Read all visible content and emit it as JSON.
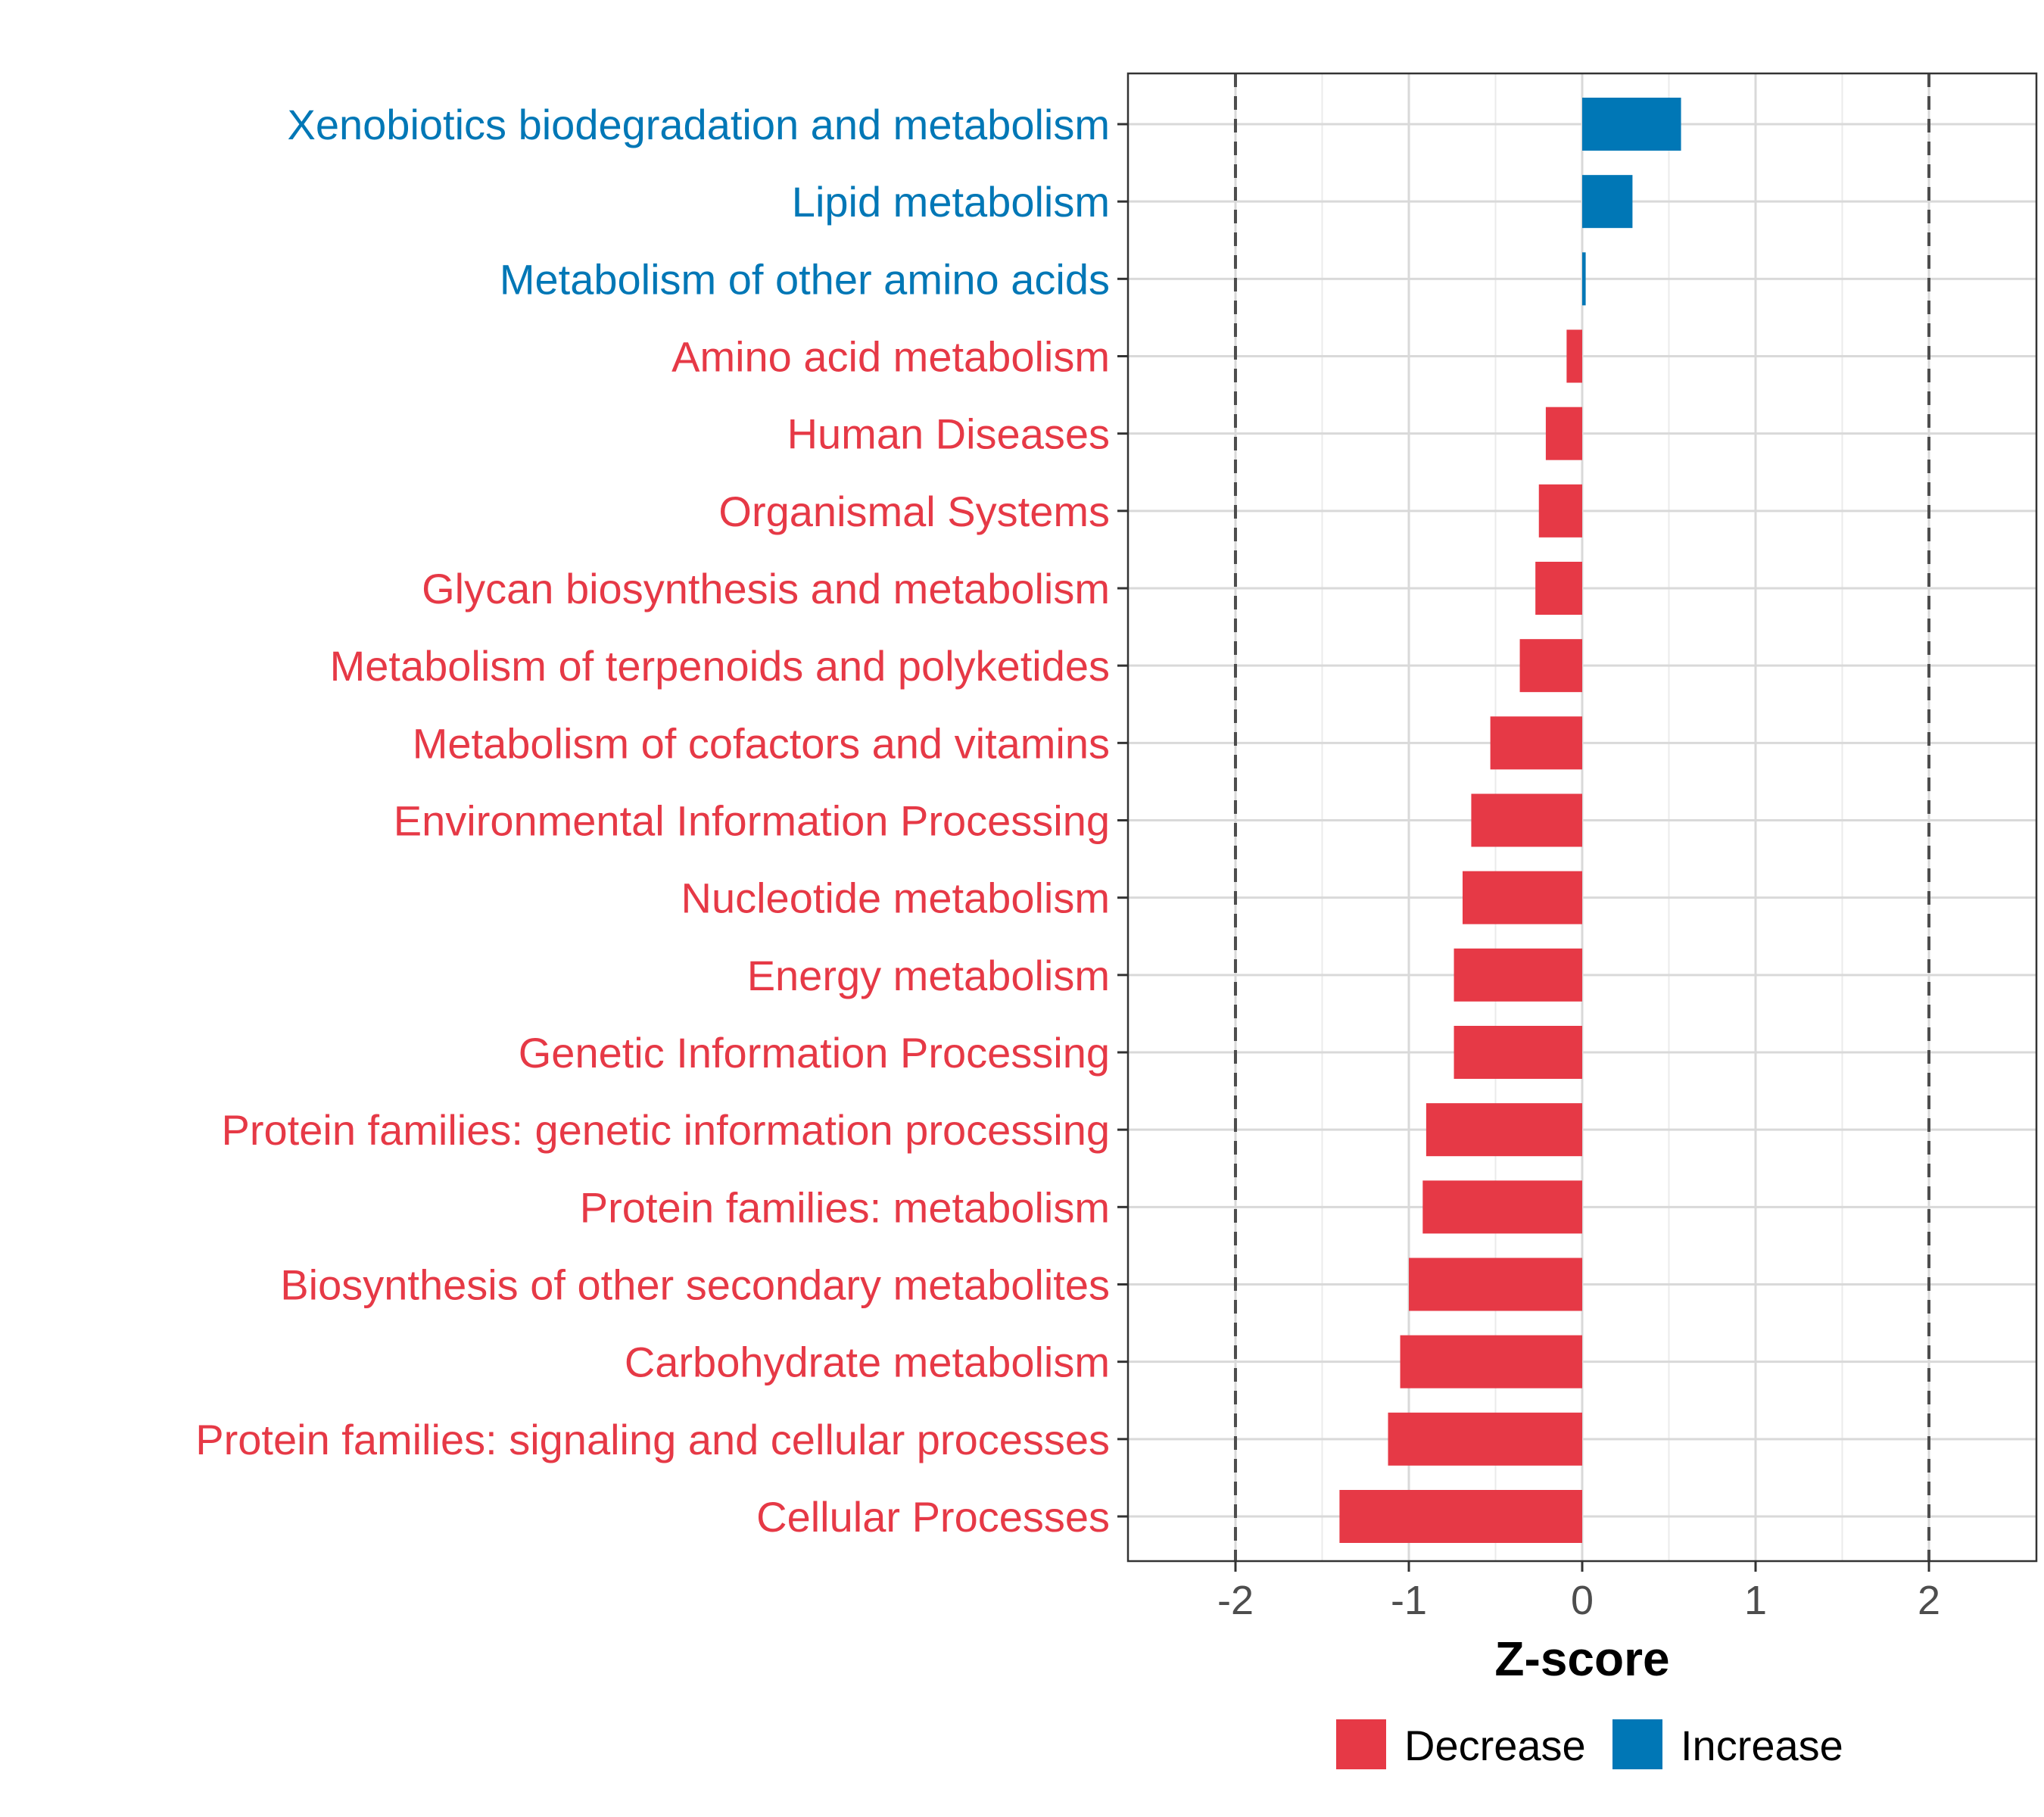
{
  "chart_data": {
    "type": "bar",
    "orientation": "horizontal",
    "xlabel": "Z-score",
    "ylabel": "",
    "xlim": [
      -2.62,
      2.62
    ],
    "x_ticks": [
      -2,
      -1,
      0,
      1,
      2
    ],
    "x_tick_labels": [
      "-2",
      "-1",
      "0",
      "1",
      "2"
    ],
    "reference_lines": [
      -2,
      2
    ],
    "grid": true,
    "legend_position": "bottom",
    "colors": {
      "Decrease": "#e63946",
      "Increase": "#0077b6"
    },
    "categories": [
      "Xenobiotics biodegradation and metabolism",
      "Lipid metabolism",
      "Metabolism of other amino acids",
      "Amino acid metabolism",
      "Human Diseases",
      "Organismal Systems",
      "Glycan biosynthesis and metabolism",
      "Metabolism of terpenoids and polyketides",
      "Metabolism of cofactors and vitamins",
      "Environmental Information Processing",
      "Nucleotide metabolism",
      "Energy metabolism",
      "Genetic Information Processing",
      "Protein families: genetic information processing",
      "Protein families: metabolism",
      "Biosynthesis of other secondary metabolites",
      "Carbohydrate metabolism",
      "Protein families: signaling and cellular processes",
      "Cellular Processes"
    ],
    "values": [
      0.57,
      0.29,
      0.02,
      -0.09,
      -0.21,
      -0.25,
      -0.27,
      -0.36,
      -0.53,
      -0.64,
      -0.69,
      -0.74,
      -0.74,
      -0.9,
      -0.92,
      -1.0,
      -1.05,
      -1.12,
      -1.4
    ],
    "groups": [
      "Increase",
      "Increase",
      "Increase",
      "Decrease",
      "Decrease",
      "Decrease",
      "Decrease",
      "Decrease",
      "Decrease",
      "Decrease",
      "Decrease",
      "Decrease",
      "Decrease",
      "Decrease",
      "Decrease",
      "Decrease",
      "Decrease",
      "Decrease",
      "Decrease"
    ],
    "legend": [
      "Decrease",
      "Increase"
    ]
  }
}
